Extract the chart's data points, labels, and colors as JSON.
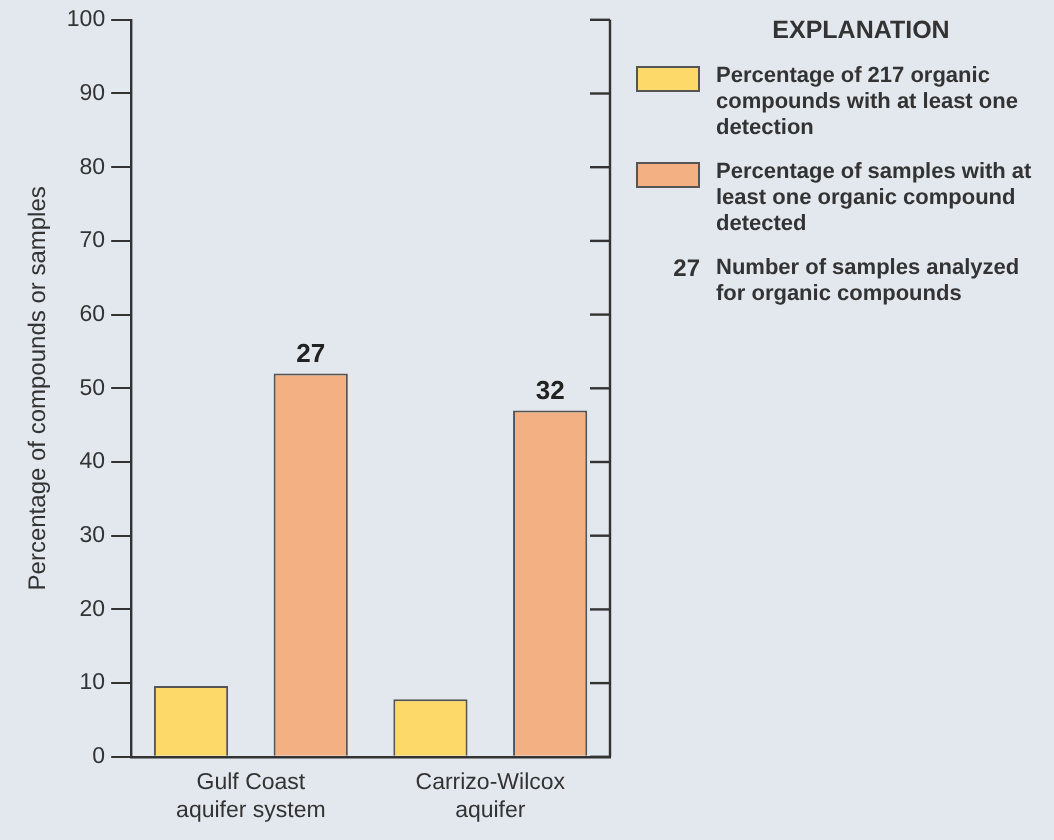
{
  "chart_data": {
    "type": "bar",
    "ylabel": "Percentage of compounds or samples",
    "legend_title": "EXPLANATION",
    "categories": [
      "Gulf Coast aquifer system",
      "Carrizo-Wilcox aquifer"
    ],
    "series": [
      {
        "name": "Percentage of 217 organic compounds with at least one detection",
        "color": "#fdd96a",
        "values": [
          9.6,
          7.8
        ]
      },
      {
        "name": "Percentage of samples with at least one organic compound detected",
        "color": "#f3b183",
        "values": [
          52,
          47
        ]
      }
    ],
    "ylim": [
      0,
      100
    ],
    "yticks": [
      0,
      10,
      20,
      30,
      40,
      50,
      60,
      70,
      80,
      90,
      100
    ],
    "grid": false,
    "legend": "right",
    "annotations": [
      "27",
      "32",
      "27 Number of samples analyzed for organic compounds"
    ]
  }
}
